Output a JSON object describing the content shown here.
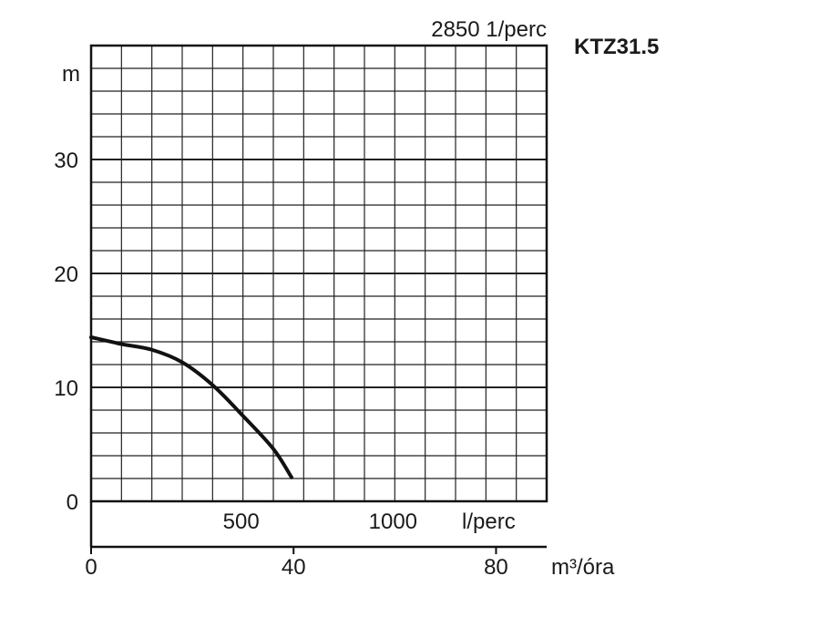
{
  "chart_data": {
    "type": "line",
    "title": "KTZ31.5",
    "subtitle": "2850 1/perc",
    "ylabel": "m",
    "xlabel": "l/perc",
    "x2label": "m³/óra",
    "ylim": [
      0,
      40
    ],
    "xlim": [
      0,
      1500
    ],
    "x2lim": [
      0,
      90
    ],
    "grid": true,
    "y_ticks": [
      {
        "value": 0,
        "label": "0"
      },
      {
        "value": 10,
        "label": "10"
      },
      {
        "value": 20,
        "label": "20"
      },
      {
        "value": 30,
        "label": "30"
      }
    ],
    "x_ticks": [
      {
        "value": 500,
        "label": "500"
      },
      {
        "value": 1000,
        "label": "1000"
      }
    ],
    "x2_ticks": [
      {
        "value": 0,
        "label": "0"
      },
      {
        "value": 40,
        "label": "40"
      },
      {
        "value": 80,
        "label": "80"
      }
    ],
    "series": [
      {
        "color": "#111111",
        "points": [
          {
            "x": 0,
            "y": 14.4
          },
          {
            "x": 100,
            "y": 13.8
          },
          {
            "x": 200,
            "y": 13.3
          },
          {
            "x": 300,
            "y": 12.2
          },
          {
            "x": 400,
            "y": 10.2
          },
          {
            "x": 500,
            "y": 7.5
          },
          {
            "x": 600,
            "y": 4.6
          },
          {
            "x": 660,
            "y": 2.1
          }
        ]
      }
    ]
  }
}
